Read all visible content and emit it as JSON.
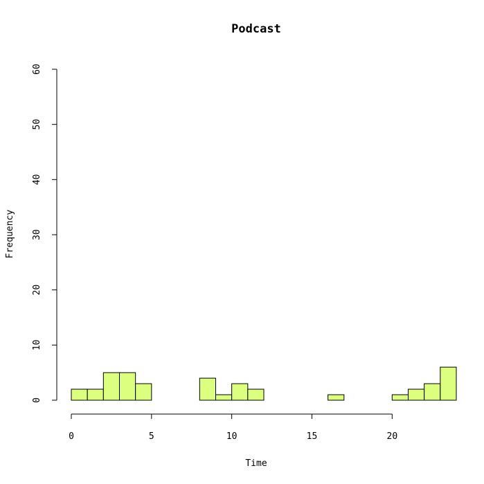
{
  "chart_data": {
    "type": "bar",
    "title": "Podcast",
    "xlabel": "Time",
    "ylabel": "Frequency",
    "bar_color": "#dcff80",
    "xlim": [
      0,
      24
    ],
    "ylim": [
      0,
      60
    ],
    "x_ticks": [
      0,
      5,
      10,
      15,
      20
    ],
    "y_ticks": [
      0,
      10,
      20,
      30,
      40,
      50,
      60
    ],
    "bin_width": 1,
    "bins": [
      0,
      1,
      2,
      3,
      4,
      5,
      6,
      7,
      8,
      9,
      10,
      11,
      12,
      13,
      14,
      15,
      16,
      17,
      18,
      19,
      20,
      21,
      22,
      23
    ],
    "values": [
      2,
      2,
      5,
      5,
      3,
      0,
      0,
      0,
      4,
      1,
      3,
      2,
      0,
      0,
      0,
      0,
      1,
      0,
      0,
      0,
      1,
      2,
      3,
      6
    ]
  }
}
